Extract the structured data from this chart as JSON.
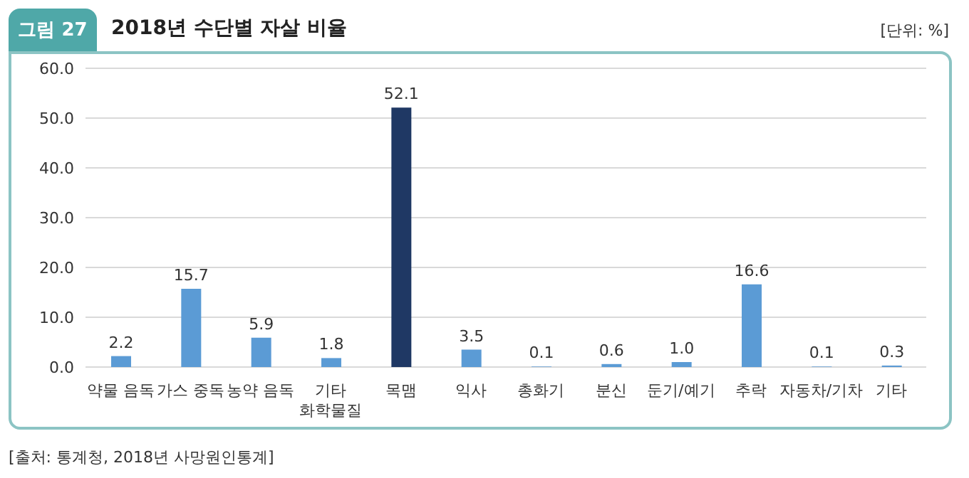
{
  "chart_data": {
    "type": "bar",
    "title": "2018년 수단별 자살 비율",
    "ylabel": "[단위: %]",
    "annotations": [
      "그림 27",
      "[출처: 통계청, 2018년 사망원인통계]"
    ],
    "categories": [
      "약물 음독",
      "가스 중독",
      "농약 음독",
      "기타\n화학물질",
      "목맴",
      "익사",
      "총화기",
      "분신",
      "둔기/예기",
      "추락",
      "자동차/기차",
      "기타"
    ],
    "values": [
      2.2,
      15.7,
      5.9,
      1.8,
      52.1,
      3.5,
      0.1,
      0.6,
      1.0,
      16.6,
      0.1,
      0.3
    ],
    "value_labels": [
      "2.2",
      "15.7",
      "5.9",
      "1.8",
      "52.1",
      "3.5",
      "0.1",
      "0.6",
      "1.0",
      "16.6",
      "0.1",
      "0.3"
    ],
    "colors": [
      "#5b9bd5",
      "#5b9bd5",
      "#5b9bd5",
      "#5b9bd5",
      "#1f3864",
      "#5b9bd5",
      "#5b9bd5",
      "#5b9bd5",
      "#5b9bd5",
      "#5b9bd5",
      "#5b9bd5",
      "#5b9bd5"
    ],
    "ylim": [
      0,
      60
    ],
    "yticks": [
      {
        "value": 0,
        "label": "0.0"
      },
      {
        "value": 10,
        "label": "10.0"
      },
      {
        "value": 20,
        "label": "20.0"
      },
      {
        "value": 30,
        "label": "30.0"
      },
      {
        "value": 40,
        "label": "40.0"
      },
      {
        "value": 50,
        "label": "50.0"
      },
      {
        "value": 60,
        "label": "60.0"
      }
    ],
    "grid": "y",
    "legend": false
  }
}
